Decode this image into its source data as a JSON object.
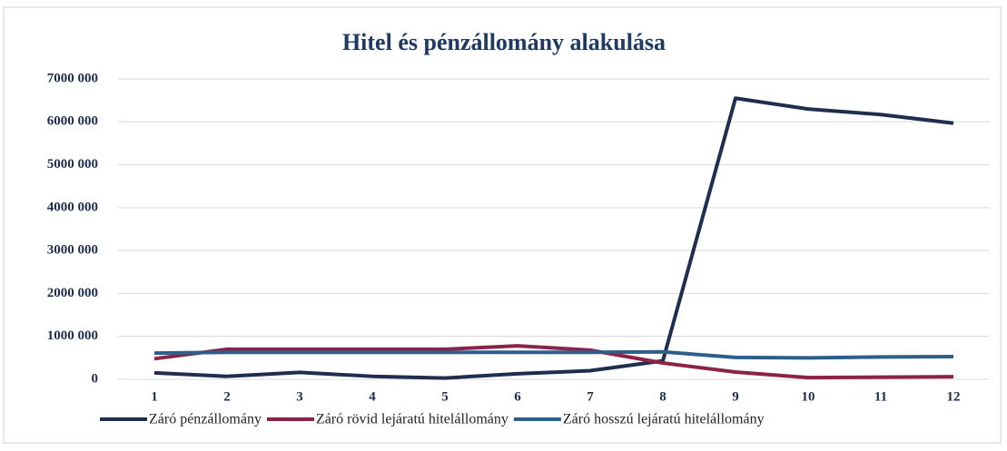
{
  "chart_data": {
    "type": "line",
    "title": "Hitel és pénzállomány  alakulása",
    "categories": [
      "1",
      "2",
      "3",
      "4",
      "5",
      "6",
      "7",
      "8",
      "9",
      "10",
      "11",
      "12"
    ],
    "series": [
      {
        "name": "Záró pénzállomány",
        "color": "#1f2d4f",
        "values": [
          150000,
          70000,
          160000,
          70000,
          30000,
          130000,
          200000,
          430000,
          6550000,
          6300000,
          6170000,
          5970000
        ]
      },
      {
        "name": "Záró rövid lejáratú hitelállomány",
        "color": "#8b2346",
        "values": [
          480000,
          700000,
          700000,
          700000,
          700000,
          780000,
          680000,
          380000,
          170000,
          40000,
          50000,
          60000
        ]
      },
      {
        "name": "Záró hosszú lejáratú hitelállomány",
        "color": "#2e5f8a",
        "values": [
          610000,
          630000,
          630000,
          630000,
          630000,
          630000,
          630000,
          640000,
          510000,
          500000,
          520000,
          530000
        ]
      }
    ],
    "ylim": [
      0,
      7000000
    ],
    "yticks": [
      0,
      {
        "value": 1000000,
        "label": "1000 000"
      },
      {
        "value": 2000000,
        "label": "2000 000"
      },
      {
        "value": 3000000,
        "label": "3000 000"
      },
      {
        "value": 4000000,
        "label": "4000 000"
      },
      {
        "value": 5000000,
        "label": "5000 000"
      },
      {
        "value": 6000000,
        "label": "6000 000"
      },
      {
        "value": 7000000,
        "label": "7000 000"
      }
    ],
    "grid": true,
    "legend": "bottom"
  }
}
